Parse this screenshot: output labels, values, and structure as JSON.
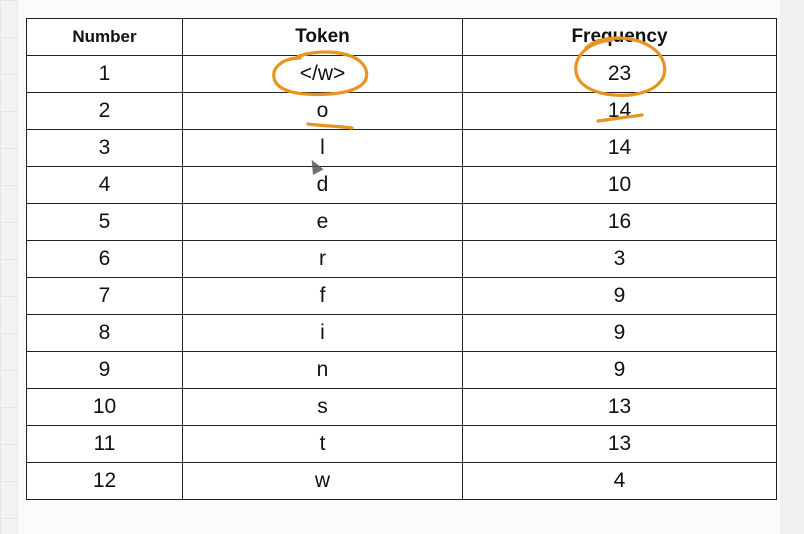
{
  "table": {
    "headers": [
      "Number",
      "Token",
      "Frequency"
    ],
    "rows": [
      {
        "number": "1",
        "token": "</w>",
        "frequency": "23"
      },
      {
        "number": "2",
        "token": "o",
        "frequency": "14"
      },
      {
        "number": "3",
        "token": "l",
        "frequency": "14"
      },
      {
        "number": "4",
        "token": "d",
        "frequency": "10"
      },
      {
        "number": "5",
        "token": "e",
        "frequency": "16"
      },
      {
        "number": "6",
        "token": "r",
        "frequency": "3"
      },
      {
        "number": "7",
        "token": "f",
        "frequency": "9"
      },
      {
        "number": "8",
        "token": "i",
        "frequency": "9"
      },
      {
        "number": "9",
        "token": "n",
        "frequency": "9"
      },
      {
        "number": "10",
        "token": "s",
        "frequency": "13"
      },
      {
        "number": "11",
        "token": "t",
        "frequency": "13"
      },
      {
        "number": "12",
        "token": "w",
        "frequency": "4"
      }
    ]
  },
  "annotation_color": "#e8941e",
  "grid_color": "#222222"
}
